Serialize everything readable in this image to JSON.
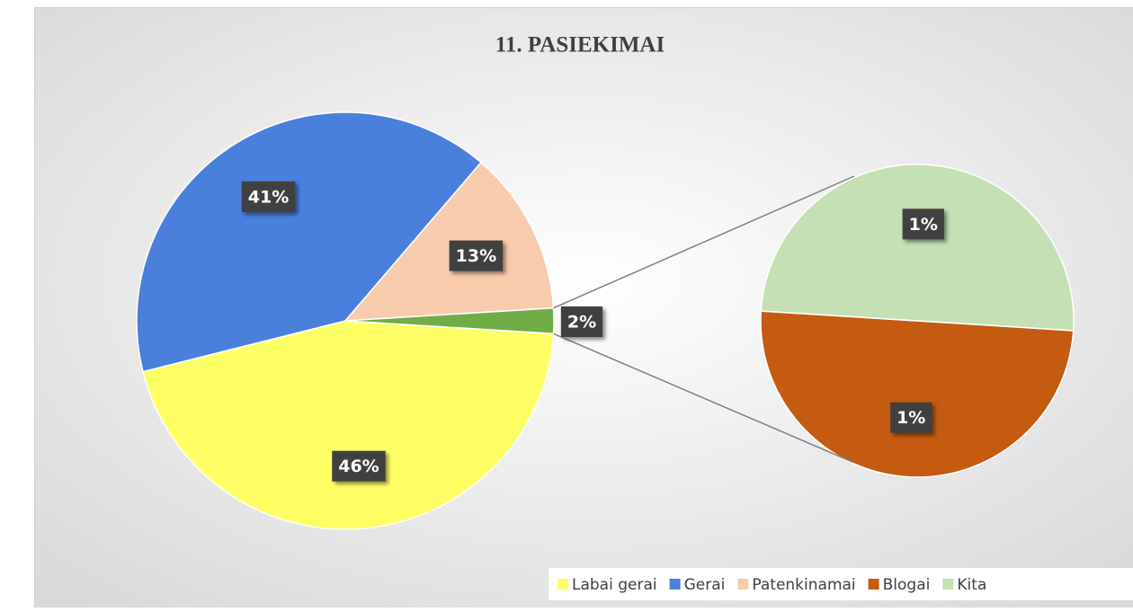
{
  "chart_data": {
    "type": "pie-of-pie",
    "title": "11. PASIEKIMAI",
    "categories": [
      "Labai gerai",
      "Gerai",
      "Patenkinamai",
      "Blogai",
      "Kita"
    ],
    "values": [
      46,
      41,
      13,
      1,
      1
    ],
    "value_labels": [
      "46%",
      "41%",
      "13%",
      "1%",
      "1%"
    ],
    "colors": [
      "#ffff66",
      "#4a7fdc",
      "#f8cbad",
      "#c55a11",
      "#c5e0b4"
    ],
    "other_value": 2,
    "other_value_label": "2%",
    "other_color": "#70ad47",
    "legend": "bottom-right"
  }
}
